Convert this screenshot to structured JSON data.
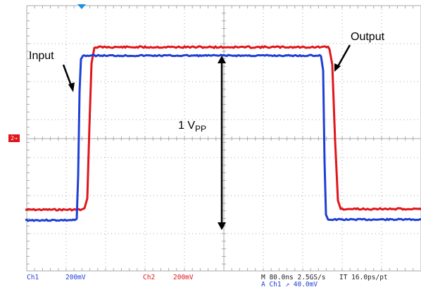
{
  "annotations": {
    "input_label": "Input",
    "output_label": "Output",
    "amplitude_main": "1 V",
    "amplitude_sub": "PP"
  },
  "channel_marker": "2",
  "status_bar": {
    "ch1_name": "Ch1",
    "ch1_scale": "200mV",
    "ch2_name": "Ch2",
    "ch2_scale": "200mV",
    "timebase": "M 80.0ns 2.5GS/s",
    "interp": "IT 16.0ps/pt",
    "trigger": "A  Ch1  ↗  40.0mV"
  },
  "colors": {
    "ch1": "#1e3fd6",
    "ch2": "#e0151b",
    "grid": "#a9a9a9",
    "arrow": "#000000"
  }
}
